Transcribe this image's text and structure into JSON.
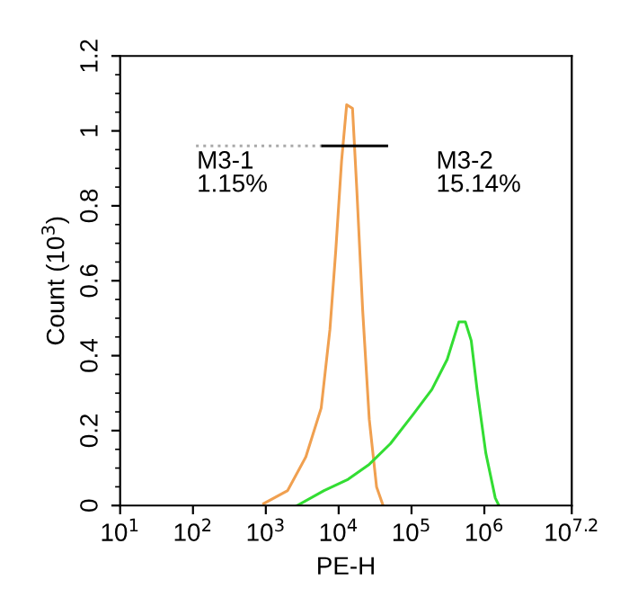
{
  "chart_data": {
    "type": "line",
    "xlabel": "PE-H",
    "ylabel": "Count (10$^{3}$)",
    "log": "x",
    "series": [
      {
        "color": "#f0a050",
        "x": [
          933,
          1995,
          3548,
          5754,
          7586,
          9120,
          10965,
          12882,
          15488,
          17783,
          21380,
          26303,
          33113,
          40738
        ],
        "values": [
          0.005,
          0.04,
          0.13,
          0.26,
          0.47,
          0.68,
          0.92,
          1.07,
          1.06,
          0.84,
          0.52,
          0.23,
          0.05,
          0
        ]
      },
      {
        "color": "#33dd33",
        "x": [
          2692,
          6310,
          13490,
          26303,
          51286,
          107152,
          190546,
          309030,
          446684,
          549541,
          660693,
          794328,
          1047129,
          1412538,
          1584893
        ],
        "values": [
          0,
          0.04,
          0.07,
          0.11,
          0.165,
          0.245,
          0.31,
          0.39,
          0.49,
          0.49,
          0.44,
          0.31,
          0.14,
          0.02,
          0
        ]
      },
      {
        "color": "#aaaaaa",
        "line_style": "dotted",
        "x": [
          110,
          6026
        ],
        "values": [
          0.96,
          0.96
        ]
      },
      {
        "color": "#000000",
        "line_style": "solid",
        "x": [
          6026,
          45709
        ],
        "values": [
          0.96,
          0.96
        ]
      }
    ],
    "annotations": [
      "M3-1\n1.15%",
      "M3-2\n15.14%"
    ],
    "xlim": [
      10,
      15848932
    ],
    "xticks": [
      {
        "value": 10,
        "label": "10$^{1}$"
      },
      {
        "value": 100,
        "label": "10$^{2}$"
      },
      {
        "value": 1000,
        "label": "10$^{3}$"
      },
      {
        "value": 10000,
        "label": "10$^{4}$"
      },
      {
        "value": 100000,
        "label": "10$^{5}$"
      },
      {
        "value": 1000000,
        "label": "10$^{6}$"
      },
      {
        "value": 15848932,
        "label": "10$^{7.2}$"
      }
    ],
    "ylim": [
      0,
      1.2
    ],
    "yticks": [
      0,
      0.2,
      0.4,
      0.6,
      0.8,
      1,
      1.2
    ]
  }
}
